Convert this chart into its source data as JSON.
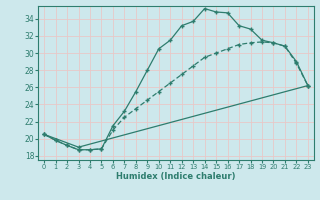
{
  "title": "",
  "xlabel": "Humidex (Indice chaleur)",
  "bg_color": "#cde8ec",
  "grid_color": "#e8c8c8",
  "line_color": "#2e7d6e",
  "spine_color": "#2e7d6e",
  "xlim": [
    -0.5,
    23.5
  ],
  "ylim": [
    17.5,
    35.5
  ],
  "xticks": [
    0,
    1,
    2,
    3,
    4,
    5,
    6,
    7,
    8,
    9,
    10,
    11,
    12,
    13,
    14,
    15,
    16,
    17,
    18,
    19,
    20,
    21,
    22,
    23
  ],
  "yticks": [
    18,
    20,
    22,
    24,
    26,
    28,
    30,
    32,
    34
  ],
  "line1_x": [
    0,
    1,
    2,
    3,
    4,
    5,
    6,
    7,
    8,
    9,
    10,
    11,
    12,
    13,
    14,
    15,
    16,
    17,
    18,
    19,
    20,
    21,
    22,
    23
  ],
  "line1_y": [
    20.5,
    19.8,
    19.2,
    18.7,
    18.7,
    18.8,
    21.5,
    23.2,
    25.5,
    28.0,
    30.5,
    31.5,
    33.2,
    33.7,
    35.2,
    34.8,
    34.7,
    33.2,
    32.8,
    31.5,
    31.2,
    30.8,
    29.0,
    26.2
  ],
  "line2_x": [
    0,
    1,
    2,
    3,
    4,
    5,
    6,
    7,
    8,
    9,
    10,
    11,
    12,
    13,
    14,
    15,
    16,
    17,
    18,
    19,
    20,
    21,
    22,
    23
  ],
  "line2_y": [
    20.5,
    19.8,
    19.2,
    18.7,
    18.7,
    18.8,
    21.0,
    22.5,
    23.5,
    24.5,
    25.5,
    26.5,
    27.5,
    28.5,
    29.5,
    30.0,
    30.5,
    31.0,
    31.2,
    31.3,
    31.2,
    30.8,
    28.8,
    26.2
  ],
  "line3_x": [
    0,
    3,
    23
  ],
  "line3_y": [
    20.5,
    19.0,
    26.2
  ]
}
